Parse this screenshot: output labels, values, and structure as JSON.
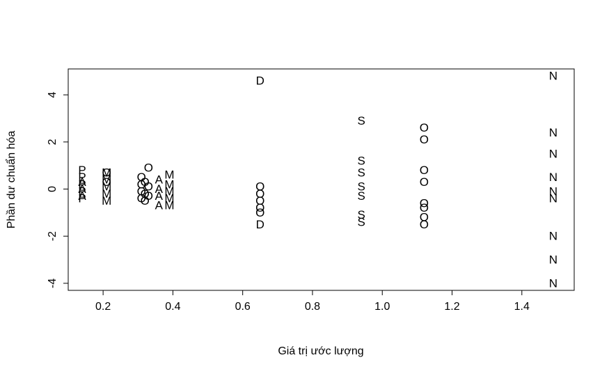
{
  "chart_data": {
    "type": "scatter",
    "title": "",
    "xlabel": "Giá trị ước lượng",
    "ylabel": "Phần dư chuẩn hóa",
    "xlim": [
      0.1,
      1.55
    ],
    "ylim": [
      -4.3,
      5.1
    ],
    "x_ticks": [
      0.2,
      0.4,
      0.6,
      0.8,
      1.0,
      1.2,
      1.4
    ],
    "x_tick_labels": [
      "0.2",
      "0.4",
      "0.6",
      "0.8",
      "1.0",
      "1.2",
      "1.4"
    ],
    "y_ticks": [
      -4,
      -2,
      0,
      2,
      4
    ],
    "y_tick_labels": [
      "-4",
      "-2",
      "0",
      "2",
      "4"
    ],
    "grid": false,
    "legend": "none",
    "marker": "letter",
    "points": [
      {
        "label": "P",
        "x": 0.14,
        "y": 0.8
      },
      {
        "label": "P",
        "x": 0.14,
        "y": 0.5
      },
      {
        "label": "P",
        "x": 0.14,
        "y": 0.2
      },
      {
        "label": "P",
        "x": 0.14,
        "y": -0.1
      },
      {
        "label": "P",
        "x": 0.14,
        "y": -0.4
      },
      {
        "label": "A",
        "x": 0.14,
        "y": 0.3
      },
      {
        "label": "A",
        "x": 0.14,
        "y": 0.0
      },
      {
        "label": "A",
        "x": 0.14,
        "y": -0.3
      },
      {
        "label": "M",
        "x": 0.21,
        "y": 0.7
      },
      {
        "label": "M",
        "x": 0.21,
        "y": 0.4
      },
      {
        "label": "M",
        "x": 0.21,
        "y": 0.1
      },
      {
        "label": "M",
        "x": 0.21,
        "y": -0.2
      },
      {
        "label": "M",
        "x": 0.21,
        "y": -0.5
      },
      {
        "label": "O",
        "x": 0.21,
        "y": 0.7
      },
      {
        "label": "O",
        "x": 0.21,
        "y": 0.3
      },
      {
        "label": "O",
        "x": 0.31,
        "y": 0.5
      },
      {
        "label": "O",
        "x": 0.31,
        "y": 0.2
      },
      {
        "label": "O",
        "x": 0.31,
        "y": -0.1
      },
      {
        "label": "O",
        "x": 0.31,
        "y": -0.4
      },
      {
        "label": "O",
        "x": 0.32,
        "y": 0.3
      },
      {
        "label": "O",
        "x": 0.32,
        "y": -0.2
      },
      {
        "label": "O",
        "x": 0.32,
        "y": -0.5
      },
      {
        "label": "O",
        "x": 0.33,
        "y": 0.9
      },
      {
        "label": "O",
        "x": 0.33,
        "y": 0.1
      },
      {
        "label": "O",
        "x": 0.33,
        "y": -0.3
      },
      {
        "label": "A",
        "x": 0.36,
        "y": 0.4
      },
      {
        "label": "A",
        "x": 0.36,
        "y": 0.0
      },
      {
        "label": "A",
        "x": 0.36,
        "y": -0.3
      },
      {
        "label": "A",
        "x": 0.36,
        "y": -0.7
      },
      {
        "label": "M",
        "x": 0.39,
        "y": 0.6
      },
      {
        "label": "M",
        "x": 0.39,
        "y": 0.2
      },
      {
        "label": "M",
        "x": 0.39,
        "y": -0.1
      },
      {
        "label": "M",
        "x": 0.39,
        "y": -0.4
      },
      {
        "label": "M",
        "x": 0.39,
        "y": -0.7
      },
      {
        "label": "D",
        "x": 0.65,
        "y": 4.6
      },
      {
        "label": "O",
        "x": 0.65,
        "y": 0.1
      },
      {
        "label": "O",
        "x": 0.65,
        "y": -0.2
      },
      {
        "label": "O",
        "x": 0.65,
        "y": -0.5
      },
      {
        "label": "O",
        "x": 0.65,
        "y": -0.8
      },
      {
        "label": "O",
        "x": 0.65,
        "y": -1.0
      },
      {
        "label": "D",
        "x": 0.65,
        "y": -1.5
      },
      {
        "label": "S",
        "x": 0.94,
        "y": 2.9
      },
      {
        "label": "S",
        "x": 0.94,
        "y": 1.2
      },
      {
        "label": "S",
        "x": 0.94,
        "y": 0.7
      },
      {
        "label": "S",
        "x": 0.94,
        "y": 0.1
      },
      {
        "label": "S",
        "x": 0.94,
        "y": -0.3
      },
      {
        "label": "S",
        "x": 0.94,
        "y": -1.1
      },
      {
        "label": "S",
        "x": 0.94,
        "y": -1.4
      },
      {
        "label": "O",
        "x": 1.12,
        "y": 2.6
      },
      {
        "label": "O",
        "x": 1.12,
        "y": 2.1
      },
      {
        "label": "O",
        "x": 1.12,
        "y": 0.8
      },
      {
        "label": "O",
        "x": 1.12,
        "y": 0.3
      },
      {
        "label": "O",
        "x": 1.12,
        "y": -0.6
      },
      {
        "label": "O",
        "x": 1.12,
        "y": -0.8
      },
      {
        "label": "O",
        "x": 1.12,
        "y": -1.2
      },
      {
        "label": "O",
        "x": 1.12,
        "y": -1.5
      },
      {
        "label": "N",
        "x": 1.49,
        "y": 4.8
      },
      {
        "label": "N",
        "x": 1.49,
        "y": 2.4
      },
      {
        "label": "N",
        "x": 1.49,
        "y": 1.5
      },
      {
        "label": "N",
        "x": 1.49,
        "y": 0.5
      },
      {
        "label": "N",
        "x": 1.49,
        "y": -0.1
      },
      {
        "label": "N",
        "x": 1.49,
        "y": -0.4
      },
      {
        "label": "N",
        "x": 1.49,
        "y": -2.0
      },
      {
        "label": "N",
        "x": 1.49,
        "y": -3.0
      },
      {
        "label": "N",
        "x": 1.49,
        "y": -4.0
      }
    ]
  }
}
